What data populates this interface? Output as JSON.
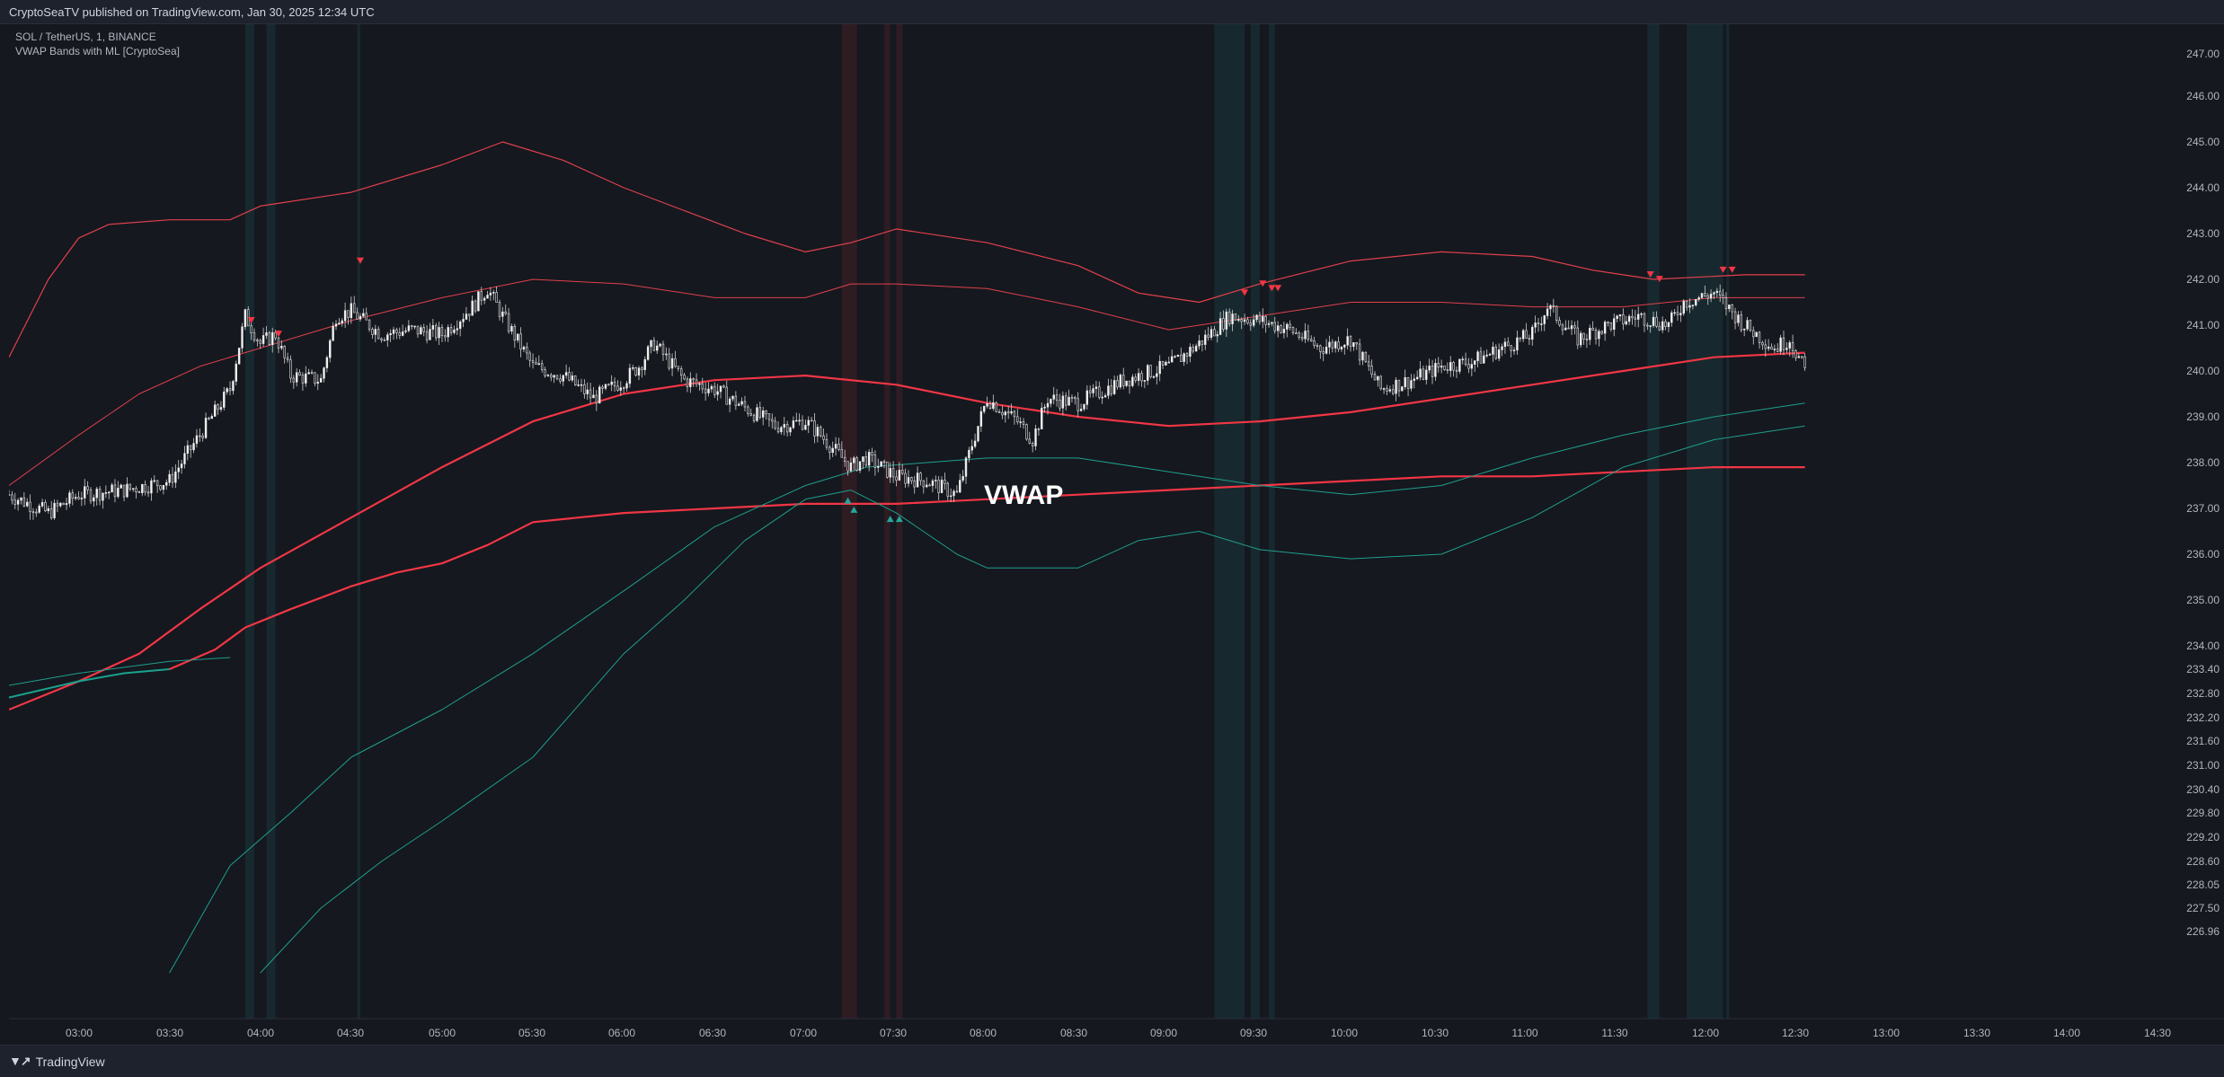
{
  "header": {
    "published": "CryptoSeaTV published on TradingView.com, Jan 30, 2025 12:34 UTC"
  },
  "legend": {
    "symbol": "SOL / TetherUS, 1, BINANCE",
    "indicator": "VWAP Bands with ML [CryptoSea]"
  },
  "footer": {
    "brand": "TradingView",
    "brand_icon": "tradingview-logo-icon"
  },
  "colors": {
    "bg": "#15181f",
    "bull": "#26a69a",
    "bear": "#f23645",
    "teal_band": "#1f9e8c",
    "red_band": "#e0404c",
    "candle": "#e6e6e6"
  },
  "chart_data": {
    "type": "candlestick",
    "annotation": "VWAP",
    "y_ticks": [
      "247.00",
      "246.00",
      "245.00",
      "244.00",
      "243.00",
      "242.00",
      "241.00",
      "240.00",
      "239.00",
      "238.00",
      "237.00",
      "236.00",
      "235.00",
      "234.00",
      "233.40",
      "232.80",
      "232.20",
      "231.60",
      "231.00",
      "230.40",
      "229.80",
      "229.20",
      "228.60",
      "228.05",
      "227.50",
      "226.96"
    ],
    "x_ticks": [
      "03:00",
      "03:30",
      "04:00",
      "04:30",
      "05:00",
      "05:30",
      "06:00",
      "06:30",
      "07:00",
      "07:30",
      "08:00",
      "08:30",
      "09:00",
      "09:30",
      "10:00",
      "10:30",
      "11:00",
      "11:30",
      "12:00",
      "12:30",
      "13:00",
      "13:30",
      "14:00",
      "14:30"
    ],
    "x_range": [
      "02:37",
      "14:30"
    ],
    "price_path": [
      [
        "02:37",
        237.3
      ],
      [
        "02:50",
        236.9
      ],
      [
        "03:00",
        237.3
      ],
      [
        "03:15",
        237.4
      ],
      [
        "03:30",
        237.6
      ],
      [
        "03:40",
        238.6
      ],
      [
        "03:50",
        239.6
      ],
      [
        "03:55",
        241.2
      ],
      [
        "04:00",
        240.6
      ],
      [
        "04:05",
        240.8
      ],
      [
        "04:10",
        239.9
      ],
      [
        "04:20",
        239.8
      ],
      [
        "04:25",
        241.2
      ],
      [
        "04:30",
        241.3
      ],
      [
        "04:40",
        240.8
      ],
      [
        "04:50",
        240.9
      ],
      [
        "05:00",
        240.8
      ],
      [
        "05:10",
        241.4
      ],
      [
        "05:15",
        241.8
      ],
      [
        "05:20",
        241.2
      ],
      [
        "05:30",
        240.1
      ],
      [
        "05:40",
        239.9
      ],
      [
        "05:50",
        239.4
      ],
      [
        "06:00",
        239.8
      ],
      [
        "06:05",
        240.1
      ],
      [
        "06:10",
        240.6
      ],
      [
        "06:20",
        239.8
      ],
      [
        "06:30",
        239.6
      ],
      [
        "06:40",
        239.2
      ],
      [
        "06:50",
        238.8
      ],
      [
        "07:00",
        238.9
      ],
      [
        "07:05",
        238.6
      ],
      [
        "07:15",
        237.9
      ],
      [
        "07:20",
        238.1
      ],
      [
        "07:30",
        237.7
      ],
      [
        "07:40",
        237.6
      ],
      [
        "07:50",
        237.3
      ],
      [
        "07:55",
        238.4
      ],
      [
        "08:00",
        239.4
      ],
      [
        "08:10",
        238.9
      ],
      [
        "08:15",
        238.5
      ],
      [
        "08:20",
        239.4
      ],
      [
        "08:30",
        239.3
      ],
      [
        "08:45",
        239.8
      ],
      [
        "09:00",
        240.1
      ],
      [
        "09:10",
        240.6
      ],
      [
        "09:20",
        241.2
      ],
      [
        "09:30",
        241.1
      ],
      [
        "09:40",
        240.9
      ],
      [
        "09:50",
        240.5
      ],
      [
        "10:00",
        240.7
      ],
      [
        "10:10",
        239.6
      ],
      [
        "10:20",
        239.8
      ],
      [
        "10:30",
        240.1
      ],
      [
        "10:40",
        240.2
      ],
      [
        "10:50",
        240.5
      ],
      [
        "11:00",
        240.8
      ],
      [
        "11:05",
        241.4
      ],
      [
        "11:15",
        240.7
      ],
      [
        "11:25",
        241.0
      ],
      [
        "11:35",
        241.2
      ],
      [
        "11:45",
        241.0
      ],
      [
        "11:50",
        241.5
      ],
      [
        "12:00",
        241.7
      ],
      [
        "12:10",
        241.0
      ],
      [
        "12:20",
        240.5
      ],
      [
        "12:25",
        240.7
      ],
      [
        "12:30",
        240.0
      ]
    ],
    "series": [
      {
        "name": "",
        "color": "#e0404c",
        "width": 1.2,
        "points": [
          [
            "02:37",
            240.3
          ],
          [
            "02:50",
            242.0
          ],
          [
            "03:00",
            242.9
          ],
          [
            "03:10",
            243.2
          ],
          [
            "03:30",
            243.3
          ],
          [
            "03:50",
            243.3
          ],
          [
            "04:00",
            243.6
          ],
          [
            "04:30",
            243.9
          ],
          [
            "05:00",
            244.5
          ],
          [
            "05:20",
            245.0
          ],
          [
            "05:40",
            244.6
          ],
          [
            "06:00",
            244.0
          ],
          [
            "06:20",
            243.5
          ],
          [
            "06:40",
            243.0
          ],
          [
            "07:00",
            242.6
          ],
          [
            "07:15",
            242.8
          ],
          [
            "07:30",
            243.1
          ],
          [
            "08:00",
            242.8
          ],
          [
            "08:30",
            242.3
          ],
          [
            "08:50",
            241.7
          ],
          [
            "09:10",
            241.5
          ],
          [
            "09:30",
            241.9
          ],
          [
            "10:00",
            242.4
          ],
          [
            "10:30",
            242.6
          ],
          [
            "11:00",
            242.5
          ],
          [
            "11:20",
            242.2
          ],
          [
            "11:40",
            242.0
          ],
          [
            "12:10",
            242.1
          ],
          [
            "12:30",
            242.1
          ]
        ]
      },
      {
        "name": "",
        "color": "#e0404c",
        "width": 1.0,
        "points": [
          [
            "02:37",
            237.5
          ],
          [
            "03:00",
            238.6
          ],
          [
            "03:20",
            239.5
          ],
          [
            "03:40",
            240.1
          ],
          [
            "04:00",
            240.5
          ],
          [
            "04:30",
            241.1
          ],
          [
            "05:00",
            241.6
          ],
          [
            "05:30",
            242.0
          ],
          [
            "06:00",
            241.9
          ],
          [
            "06:30",
            241.6
          ],
          [
            "07:00",
            241.6
          ],
          [
            "07:15",
            241.9
          ],
          [
            "07:30",
            241.9
          ],
          [
            "08:00",
            241.8
          ],
          [
            "08:30",
            241.4
          ],
          [
            "09:00",
            240.9
          ],
          [
            "09:30",
            241.2
          ],
          [
            "10:00",
            241.5
          ],
          [
            "10:30",
            241.5
          ],
          [
            "11:00",
            241.4
          ],
          [
            "11:30",
            241.4
          ],
          [
            "12:00",
            241.6
          ],
          [
            "12:30",
            241.6
          ]
        ]
      },
      {
        "name": "",
        "color": "#f23645",
        "width": 2.2,
        "points": [
          [
            "02:37",
            232.4
          ],
          [
            "03:00",
            233.1
          ],
          [
            "03:20",
            233.8
          ],
          [
            "03:40",
            234.8
          ],
          [
            "04:00",
            235.7
          ],
          [
            "04:30",
            236.8
          ],
          [
            "05:00",
            237.9
          ],
          [
            "05:30",
            238.9
          ],
          [
            "06:00",
            239.5
          ],
          [
            "06:30",
            239.8
          ],
          [
            "07:00",
            239.9
          ],
          [
            "07:30",
            239.7
          ],
          [
            "08:00",
            239.3
          ],
          [
            "08:30",
            239.0
          ],
          [
            "09:00",
            238.8
          ],
          [
            "09:30",
            238.9
          ],
          [
            "10:00",
            239.1
          ],
          [
            "10:30",
            239.4
          ],
          [
            "11:00",
            239.7
          ],
          [
            "11:30",
            240.0
          ],
          [
            "12:00",
            240.3
          ],
          [
            "12:30",
            240.4
          ]
        ]
      },
      {
        "name": "",
        "color": "#f23645",
        "width": 2.2,
        "points": [
          [
            "03:30",
            233.4
          ],
          [
            "03:45",
            233.9
          ],
          [
            "03:55",
            234.4
          ],
          [
            "04:10",
            234.8
          ],
          [
            "04:30",
            235.3
          ],
          [
            "04:45",
            235.6
          ],
          [
            "05:00",
            235.8
          ],
          [
            "05:15",
            236.2
          ],
          [
            "05:30",
            236.7
          ],
          [
            "05:45",
            236.8
          ],
          [
            "06:00",
            236.9
          ],
          [
            "06:30",
            237.0
          ],
          [
            "07:00",
            237.1
          ],
          [
            "07:30",
            237.1
          ],
          [
            "08:00",
            237.2
          ],
          [
            "08:30",
            237.3
          ],
          [
            "09:00",
            237.4
          ],
          [
            "09:30",
            237.5
          ],
          [
            "10:00",
            237.6
          ],
          [
            "10:30",
            237.7
          ],
          [
            "11:00",
            237.7
          ],
          [
            "11:30",
            237.8
          ],
          [
            "12:00",
            237.9
          ],
          [
            "12:30",
            237.9
          ]
        ]
      },
      {
        "name": "",
        "color": "#1aa28e",
        "width": 2.0,
        "points": [
          [
            "02:37",
            232.7
          ],
          [
            "03:00",
            233.1
          ],
          [
            "03:15",
            233.3
          ],
          [
            "03:30",
            233.4
          ]
        ]
      },
      {
        "name": "",
        "color": "#1f9e8c",
        "width": 1.0,
        "points": [
          [
            "02:37",
            233.0
          ],
          [
            "03:00",
            233.3
          ],
          [
            "03:30",
            233.6
          ],
          [
            "03:50",
            233.7
          ]
        ]
      },
      {
        "name": "",
        "color": "#1f9e8c",
        "width": 1.0,
        "points": [
          [
            "03:30",
            226.0
          ],
          [
            "03:50",
            228.5
          ],
          [
            "04:10",
            229.8
          ],
          [
            "04:30",
            231.2
          ],
          [
            "05:00",
            232.4
          ],
          [
            "05:30",
            233.8
          ],
          [
            "06:00",
            235.2
          ],
          [
            "06:30",
            236.6
          ],
          [
            "07:00",
            237.5
          ],
          [
            "07:20",
            237.9
          ],
          [
            "07:40",
            238.0
          ],
          [
            "08:00",
            238.1
          ],
          [
            "08:30",
            238.1
          ],
          [
            "09:00",
            237.8
          ],
          [
            "09:30",
            237.5
          ],
          [
            "10:00",
            237.3
          ],
          [
            "10:30",
            237.5
          ],
          [
            "11:00",
            238.1
          ],
          [
            "11:30",
            238.6
          ],
          [
            "12:00",
            239.0
          ],
          [
            "12:30",
            239.3
          ]
        ]
      },
      {
        "name": "",
        "color": "#1f9e8c",
        "width": 1.0,
        "points": [
          [
            "04:00",
            226.0
          ],
          [
            "04:20",
            227.5
          ],
          [
            "04:40",
            228.6
          ],
          [
            "05:00",
            229.6
          ],
          [
            "05:30",
            231.2
          ],
          [
            "06:00",
            233.8
          ],
          [
            "06:20",
            235.0
          ],
          [
            "06:40",
            236.3
          ],
          [
            "07:00",
            237.2
          ],
          [
            "07:15",
            237.4
          ],
          [
            "07:30",
            236.9
          ],
          [
            "07:50",
            236.0
          ],
          [
            "08:00",
            235.7
          ],
          [
            "08:30",
            235.7
          ],
          [
            "08:50",
            236.3
          ],
          [
            "09:10",
            236.5
          ],
          [
            "09:30",
            236.1
          ],
          [
            "10:00",
            235.9
          ],
          [
            "10:30",
            236.0
          ],
          [
            "11:00",
            236.8
          ],
          [
            "11:30",
            237.9
          ],
          [
            "12:00",
            238.5
          ],
          [
            "12:30",
            238.8
          ]
        ]
      }
    ],
    "bull_shading": [
      [
        "03:55",
        "03:58"
      ],
      [
        "04:02",
        "04:05"
      ],
      [
        "04:32",
        "04:33"
      ],
      [
        "09:15",
        "09:25"
      ],
      [
        "09:27",
        "09:30"
      ],
      [
        "09:33",
        "09:35"
      ],
      [
        "11:38",
        "11:42"
      ],
      [
        "11:51",
        "12:03"
      ],
      [
        "12:04",
        "12:05"
      ]
    ],
    "bear_shading": [
      [
        "07:12",
        "07:17"
      ],
      [
        "07:26",
        "07:28"
      ],
      [
        "07:30",
        "07:32"
      ]
    ],
    "sell_signals": [
      [
        "03:57",
        241.0
      ],
      [
        "04:06",
        240.7
      ],
      [
        "04:33",
        242.3
      ],
      [
        "09:25",
        241.6
      ],
      [
        "09:31",
        241.8
      ],
      [
        "09:34",
        241.7
      ],
      [
        "09:36",
        241.7
      ],
      [
        "11:39",
        242.0
      ],
      [
        "11:42",
        241.9
      ],
      [
        "12:03",
        242.1
      ],
      [
        "12:06",
        242.1
      ]
    ],
    "buy_signals": [
      [
        "07:14",
        237.3
      ],
      [
        "07:16",
        237.1
      ],
      [
        "07:28",
        236.9
      ],
      [
        "07:31",
        236.9
      ]
    ]
  }
}
